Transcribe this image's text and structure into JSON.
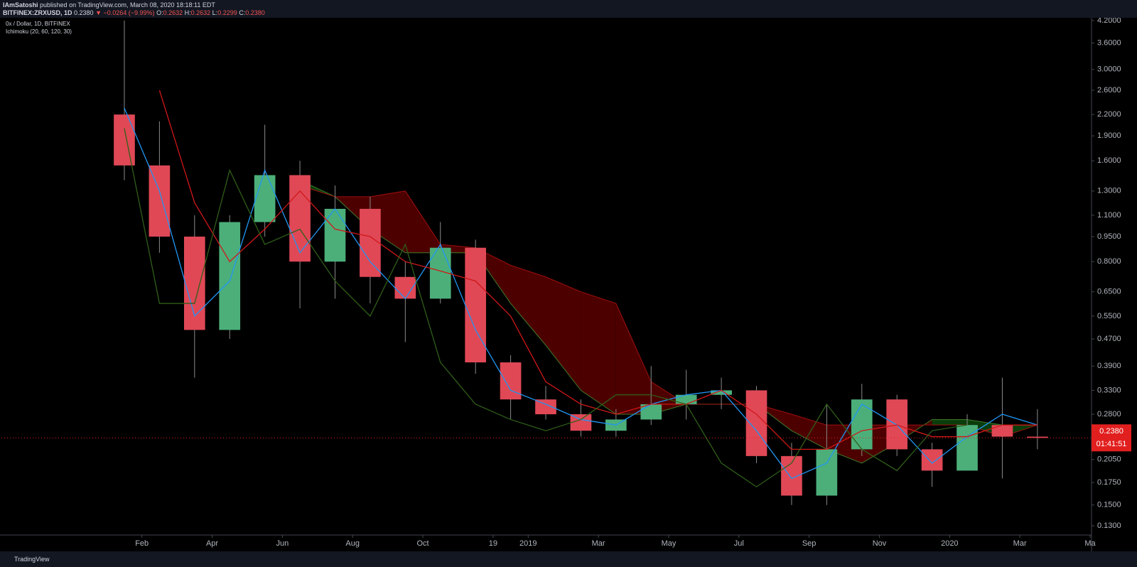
{
  "header": {
    "author": "IAmSatoshi",
    "published": "published on TradingView.com, March 08, 2020 18:18:11 EDT",
    "symbol": "BITFINEX:ZRXUSD, 1D",
    "last": "0.2380",
    "change": "▼ −0.0264 (−9.99%)",
    "ohlc": [
      [
        "O:",
        "0.2632"
      ],
      [
        "H:",
        "0.2632"
      ],
      [
        "L:",
        "0.2299"
      ],
      [
        "C:",
        "0.2380"
      ]
    ]
  },
  "footer": {
    "brand": "TradingView"
  },
  "chart_data": {
    "type": "candlestick",
    "title": "0x / Dollar, 1D, BITFINEX",
    "subtitle": "Ichimoku (20, 60, 120, 30)",
    "log_scale": true,
    "ylim": [
      0.122,
      4.28
    ],
    "xlim": [
      "2017-10",
      "2020-05"
    ],
    "yticks": [
      {
        "value": 4.2,
        "label": "4.2000"
      },
      {
        "value": 3.6,
        "label": "3.6000"
      },
      {
        "value": 3.0,
        "label": "3.0000"
      },
      {
        "value": 2.6,
        "label": "2.6000"
      },
      {
        "value": 2.2,
        "label": "2.2000"
      },
      {
        "value": 1.9,
        "label": "1.9000"
      },
      {
        "value": 1.6,
        "label": "1.6000"
      },
      {
        "value": 1.3,
        "label": "1.3000"
      },
      {
        "value": 1.1,
        "label": "1.1000"
      },
      {
        "value": 0.95,
        "label": "0.9500"
      },
      {
        "value": 0.8,
        "label": "0.8000"
      },
      {
        "value": 0.65,
        "label": "0.6500"
      },
      {
        "value": 0.55,
        "label": "0.5500"
      },
      {
        "value": 0.47,
        "label": "0.4700"
      },
      {
        "value": 0.39,
        "label": "0.3900"
      },
      {
        "value": 0.33,
        "label": "0.3300"
      },
      {
        "value": 0.28,
        "label": "0.2800"
      },
      {
        "value": 0.205,
        "label": "0.2050"
      },
      {
        "value": 0.175,
        "label": "0.1750"
      },
      {
        "value": 0.15,
        "label": "0.1500"
      },
      {
        "value": 0.13,
        "label": "0.1300"
      }
    ],
    "xticks": [
      {
        "value": "2018-02",
        "label": "Feb"
      },
      {
        "value": "2018-04",
        "label": "Apr"
      },
      {
        "value": "2018-06",
        "label": "Jun"
      },
      {
        "value": "2018-08",
        "label": "Aug"
      },
      {
        "value": "2018-10",
        "label": "Oct"
      },
      {
        "value": "2018-12",
        "label": "19"
      },
      {
        "value": "2019-01",
        "label": "2019"
      },
      {
        "value": "2019-03",
        "label": "Mar"
      },
      {
        "value": "2019-05",
        "label": "May"
      },
      {
        "value": "2019-07",
        "label": "Jul"
      },
      {
        "value": "2019-09",
        "label": "Sep"
      },
      {
        "value": "2019-11",
        "label": "Nov"
      },
      {
        "value": "2020-01",
        "label": "2020"
      },
      {
        "value": "2020-03",
        "label": "Mar"
      },
      {
        "value": "2020-05",
        "label": "Ma"
      }
    ],
    "x": [
      "2018-01",
      "2018-02",
      "2018-03",
      "2018-04",
      "2018-05",
      "2018-06",
      "2018-07",
      "2018-08",
      "2018-09",
      "2018-10",
      "2018-11",
      "2018-12",
      "2019-01",
      "2019-02",
      "2019-03",
      "2019-04",
      "2019-05",
      "2019-06",
      "2019-07",
      "2019-08",
      "2019-09",
      "2019-10",
      "2019-11",
      "2019-12",
      "2020-01",
      "2020-02",
      "2020-03"
    ],
    "open": [
      2.2,
      1.55,
      0.95,
      0.5,
      1.05,
      1.45,
      0.8,
      1.15,
      0.72,
      0.62,
      0.88,
      0.4,
      0.31,
      0.28,
      0.25,
      0.27,
      0.3,
      0.32,
      0.33,
      0.21,
      0.16,
      0.22,
      0.31,
      0.22,
      0.19,
      0.26,
      0.24
    ],
    "high": [
      4.2,
      2.1,
      1.1,
      1.1,
      2.05,
      1.6,
      1.35,
      1.25,
      0.8,
      1.05,
      0.93,
      0.42,
      0.34,
      0.31,
      0.29,
      0.39,
      0.38,
      0.36,
      0.34,
      0.23,
      0.3,
      0.345,
      0.32,
      0.23,
      0.28,
      0.36,
      0.29
    ],
    "low": [
      1.4,
      0.85,
      0.36,
      0.47,
      0.95,
      0.58,
      0.62,
      0.6,
      0.46,
      0.6,
      0.37,
      0.27,
      0.27,
      0.24,
      0.24,
      0.26,
      0.27,
      0.29,
      0.2,
      0.15,
      0.15,
      0.21,
      0.21,
      0.17,
      0.19,
      0.18,
      0.22
    ],
    "close": [
      1.55,
      0.95,
      0.5,
      1.05,
      1.45,
      0.8,
      1.15,
      0.72,
      0.62,
      0.88,
      0.4,
      0.31,
      0.28,
      0.25,
      0.27,
      0.3,
      0.32,
      0.33,
      0.21,
      0.16,
      0.22,
      0.31,
      0.22,
      0.19,
      0.26,
      0.24,
      0.238
    ],
    "up_color": "#4caf7a",
    "down_color": "#e04856",
    "wick_color": "#8a8a8a",
    "series": [
      {
        "color": "#2196f3",
        "values": [
          2.3,
          1.3,
          0.55,
          0.7,
          1.5,
          0.85,
          1.15,
          0.8,
          0.62,
          0.9,
          0.5,
          0.33,
          0.3,
          0.27,
          0.26,
          0.3,
          0.32,
          0.33,
          0.25,
          0.18,
          0.2,
          0.3,
          0.26,
          0.2,
          0.24,
          0.28,
          0.26
        ]
      },
      {
        "color": "#d01818",
        "values": [
          null,
          2.6,
          1.2,
          0.8,
          1.0,
          1.3,
          1.0,
          0.95,
          0.8,
          0.75,
          0.7,
          0.55,
          0.35,
          0.3,
          0.28,
          0.3,
          0.3,
          0.33,
          0.28,
          0.22,
          0.22,
          0.25,
          0.26,
          0.24,
          0.24,
          0.26,
          0.26
        ]
      },
      {
        "color": "#2f5e18",
        "values": [
          2.0,
          0.6,
          0.6,
          1.5,
          0.9,
          1.0,
          0.7,
          0.55,
          0.9,
          0.4,
          0.3,
          0.27,
          0.25,
          0.27,
          0.32,
          0.32,
          0.3,
          0.2,
          0.17,
          0.2,
          0.3,
          0.22,
          0.19,
          0.25,
          0.26,
          null,
          null
        ]
      }
    ],
    "cloud": {
      "up_color": "#0b3d0b",
      "down_color": "#4d0000",
      "span_a": [
        null,
        null,
        null,
        null,
        null,
        1.4,
        1.25,
        1.0,
        0.85,
        0.85,
        0.85,
        0.6,
        0.45,
        0.33,
        0.28,
        0.28,
        0.3,
        0.3,
        0.3,
        0.25,
        0.22,
        0.2,
        0.23,
        0.27,
        0.27,
        0.26,
        0.26
      ],
      "span_b": [
        null,
        null,
        null,
        null,
        null,
        1.35,
        1.25,
        1.25,
        1.3,
        0.9,
        0.88,
        0.78,
        0.72,
        0.65,
        0.6,
        0.35,
        0.3,
        0.3,
        0.3,
        0.28,
        0.26,
        0.26,
        0.26,
        0.26,
        0.26,
        0.24,
        0.26
      ]
    },
    "last_price": {
      "value": 0.238,
      "label": "0.2380",
      "color": "#e21f1f"
    },
    "countdown": "01:41:51"
  }
}
